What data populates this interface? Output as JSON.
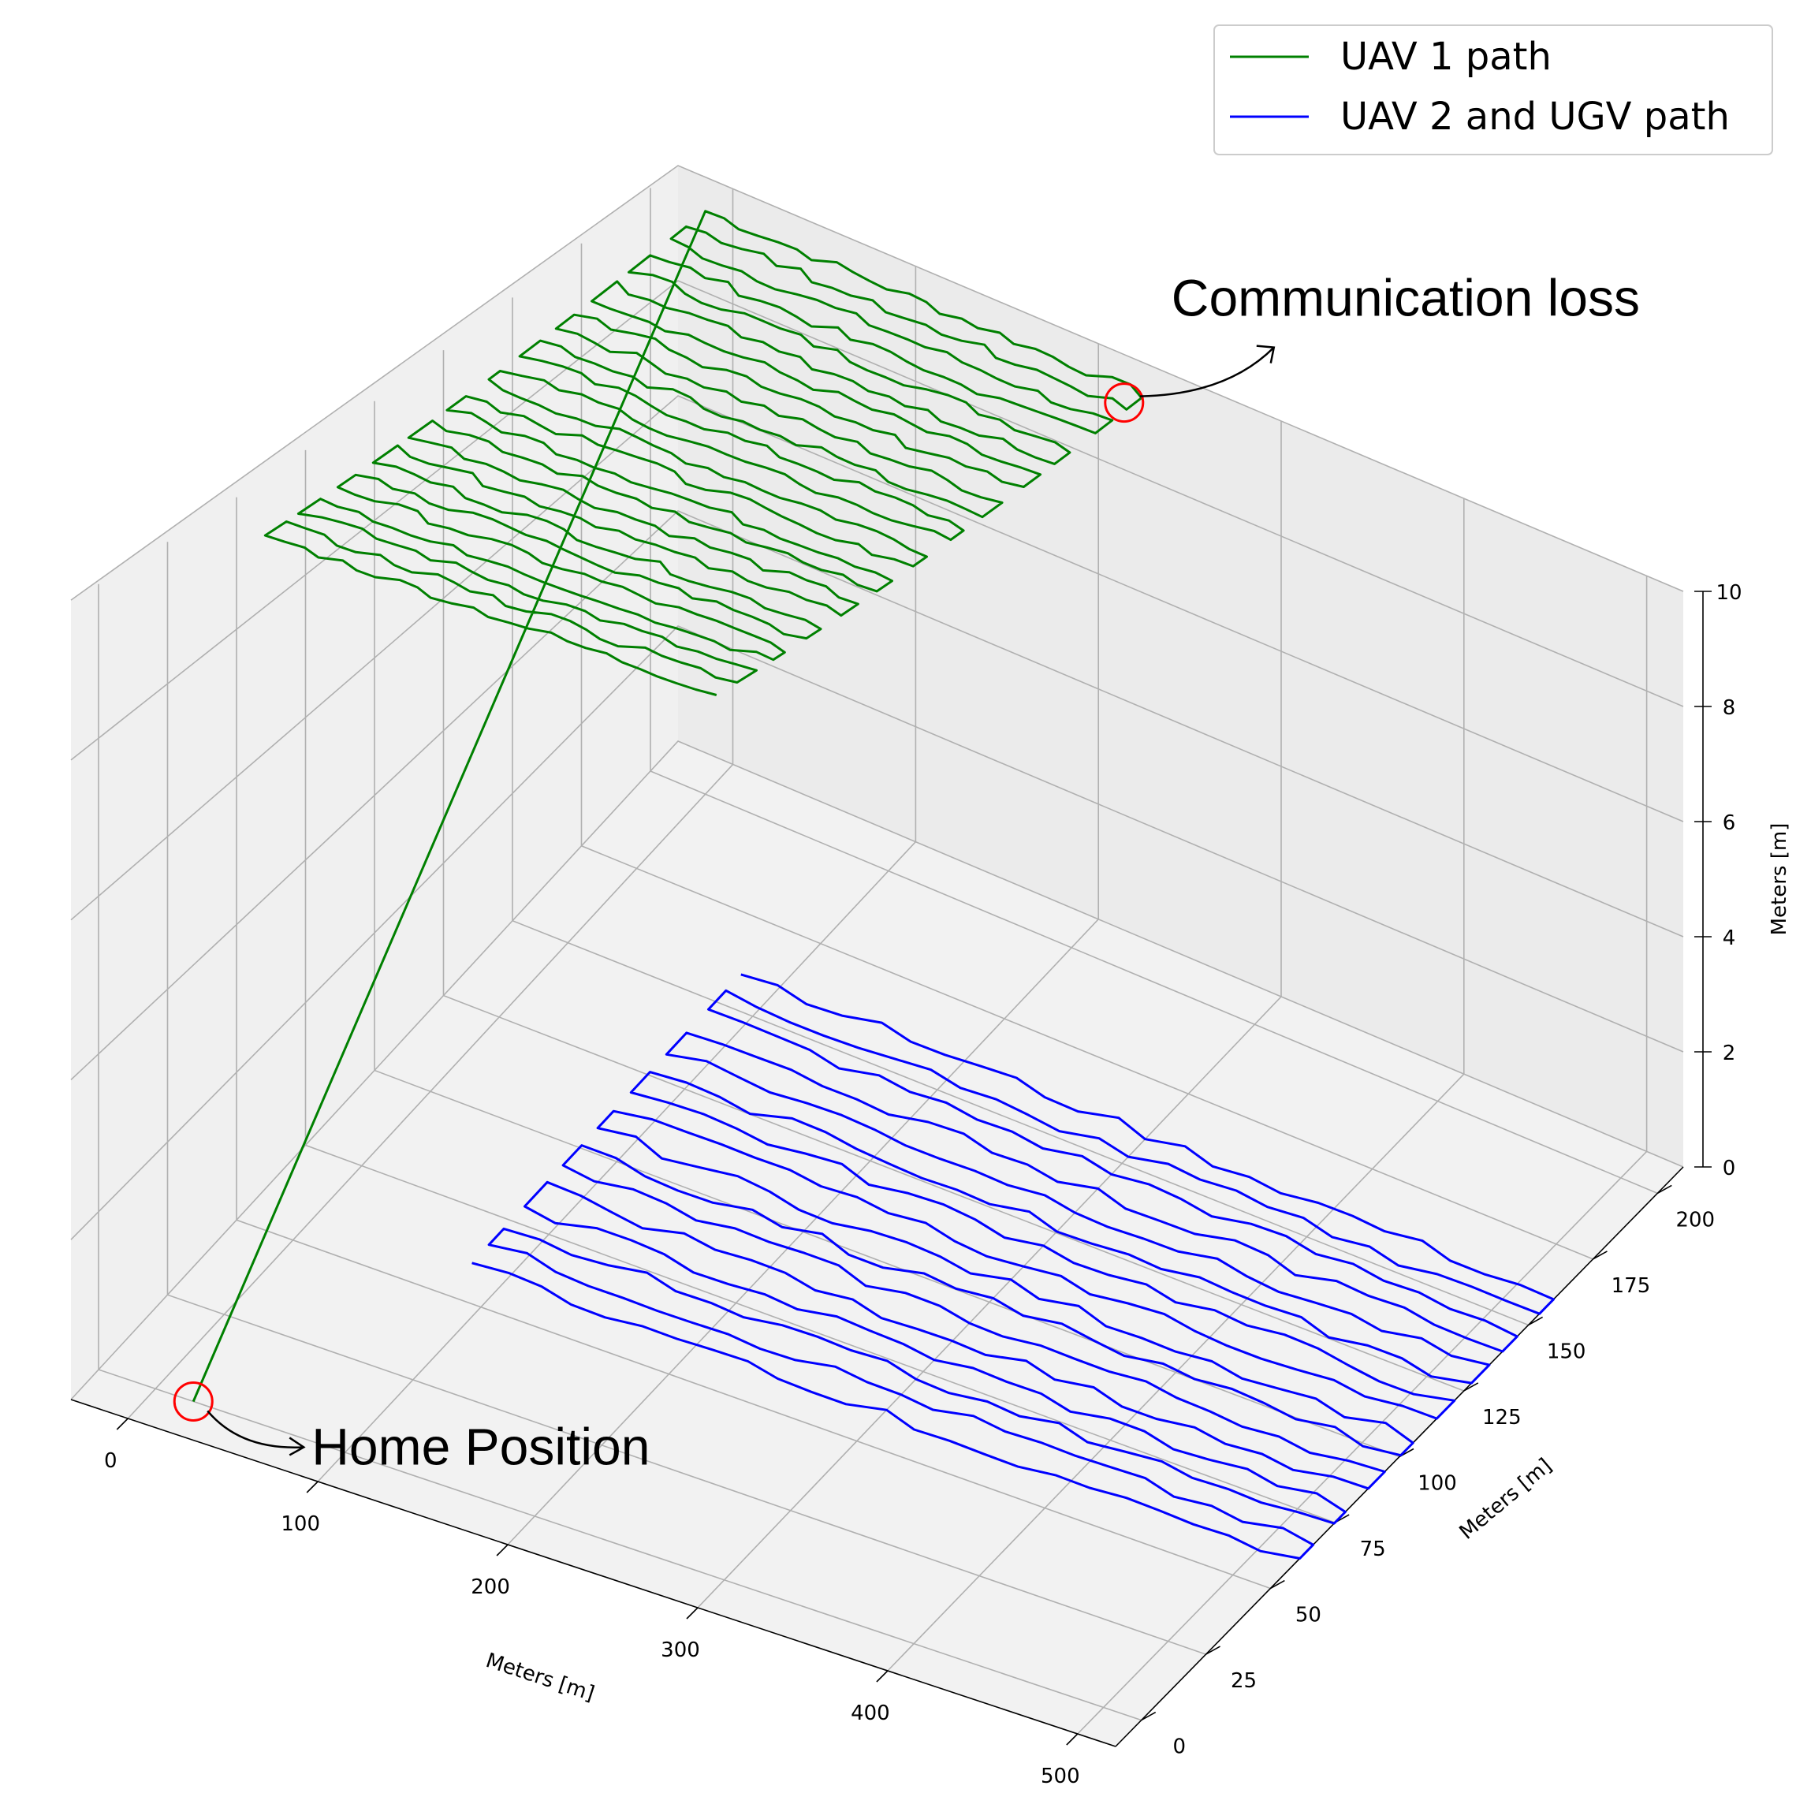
{
  "chart_data": {
    "type": "line",
    "projection": "3d",
    "axes": {
      "x": {
        "label": "Meters [m]",
        "ticks": [
          0,
          100,
          200,
          300,
          400,
          500
        ],
        "range": [
          -30,
          520
        ]
      },
      "y": {
        "label": "Meters [m]",
        "ticks": [
          0,
          25,
          50,
          75,
          100,
          125,
          150,
          175,
          200
        ],
        "range": [
          -10,
          210
        ]
      },
      "z": {
        "label": "Meters [m]",
        "ticks": [
          0,
          2,
          4,
          6,
          8,
          10
        ],
        "range": [
          0,
          10
        ]
      }
    },
    "grid": true,
    "legend": {
      "position": "top-right"
    },
    "series": [
      {
        "name": "UAV 1 path",
        "color": "#008000",
        "altitude": 10,
        "pattern": "lawnmower",
        "x_range": [
          0,
          240
        ],
        "y_range": [
          40,
          200
        ],
        "passes": 25,
        "start": [
          20,
          0,
          0
        ]
      },
      {
        "name": "UAV 2 and UGV path",
        "color": "#0000ff",
        "altitude": 0,
        "pattern": "lawnmower",
        "x_range": [
          80,
          520
        ],
        "y_range": [
          60,
          160
        ],
        "passes": 16
      }
    ],
    "annotations": [
      {
        "text": "Communication loss",
        "point": [
          236,
          195,
          10
        ],
        "marker": "circle",
        "marker_color": "#ff0000"
      },
      {
        "text": "Home Position",
        "point": [
          20,
          0,
          0
        ],
        "marker": "circle",
        "marker_color": "#ff0000"
      }
    ]
  }
}
